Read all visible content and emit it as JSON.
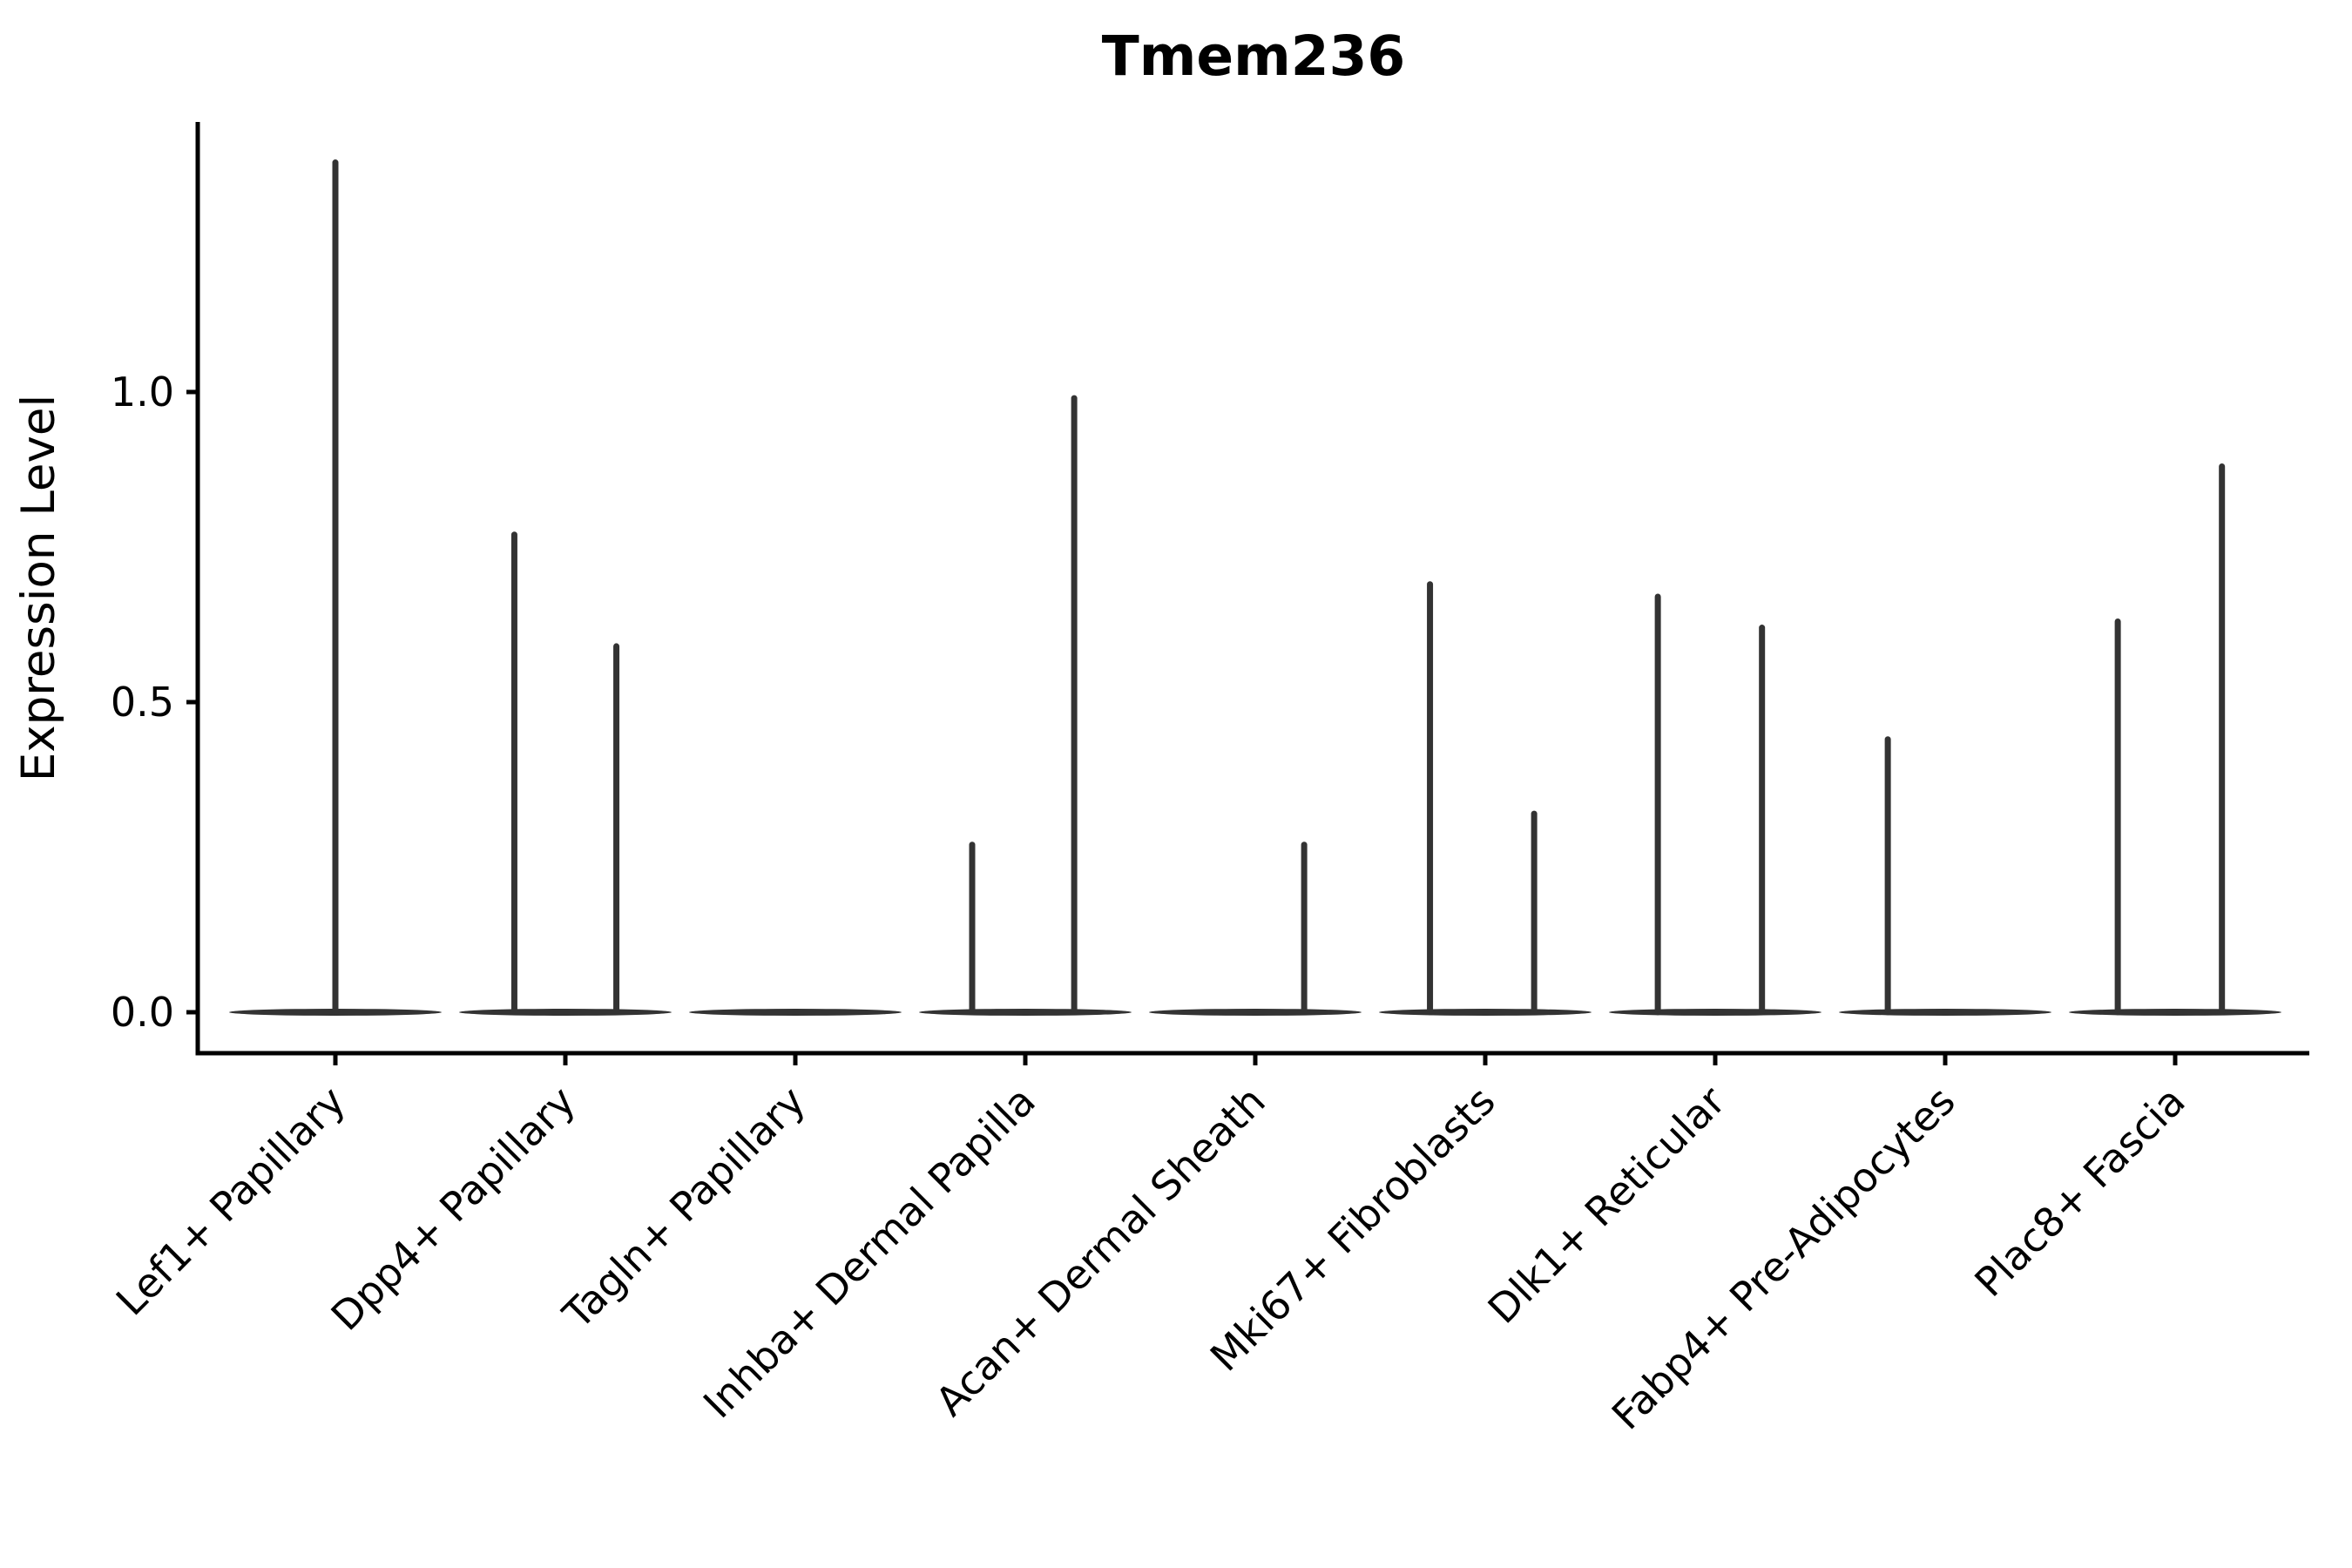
{
  "chart_data": {
    "type": "violin",
    "title": "Tmem236",
    "xlabel": "",
    "ylabel": "Expression Level",
    "ylim": [
      -0.07,
      1.44
    ],
    "grid": false,
    "legend": null,
    "baseline_value": 0.0,
    "yticks": [
      {
        "value": 0.0,
        "label": "0.0"
      },
      {
        "value": 0.5,
        "label": "0.5"
      },
      {
        "value": 1.0,
        "label": "1.0"
      }
    ],
    "categories": [
      {
        "label": "Lef1+ Papillary",
        "spikes": [
          {
            "pos": 0.5,
            "max": 1.37
          }
        ]
      },
      {
        "label": "Dpp4+ Papillary",
        "spikes": [
          {
            "pos": 0.26,
            "max": 0.77
          },
          {
            "pos": 0.74,
            "max": 0.59
          }
        ]
      },
      {
        "label": "Tagln+ Papillary",
        "spikes": []
      },
      {
        "label": "Inhba+ Dermal Papilla",
        "spikes": [
          {
            "pos": 0.25,
            "max": 0.27
          },
          {
            "pos": 0.73,
            "max": 0.99
          }
        ]
      },
      {
        "label": "Acan+ Dermal Sheath",
        "spikes": [
          {
            "pos": 0.73,
            "max": 0.27
          }
        ]
      },
      {
        "label": "Mki67+ Fibroblasts",
        "spikes": [
          {
            "pos": 0.24,
            "max": 0.69
          },
          {
            "pos": 0.73,
            "max": 0.32
          }
        ]
      },
      {
        "label": "Dlk1+ Reticular",
        "spikes": [
          {
            "pos": 0.23,
            "max": 0.67
          },
          {
            "pos": 0.72,
            "max": 0.62
          }
        ]
      },
      {
        "label": "Fabp4+ Pre-Adipocytes",
        "spikes": [
          {
            "pos": 0.23,
            "max": 0.44
          }
        ]
      },
      {
        "label": "Plac8+ Fascia",
        "spikes": [
          {
            "pos": 0.23,
            "max": 0.63
          },
          {
            "pos": 0.72,
            "max": 0.88
          }
        ]
      }
    ],
    "colors": {
      "violin": "#333333",
      "axis": "#000000",
      "text": "#000000",
      "background": "#ffffff"
    }
  }
}
